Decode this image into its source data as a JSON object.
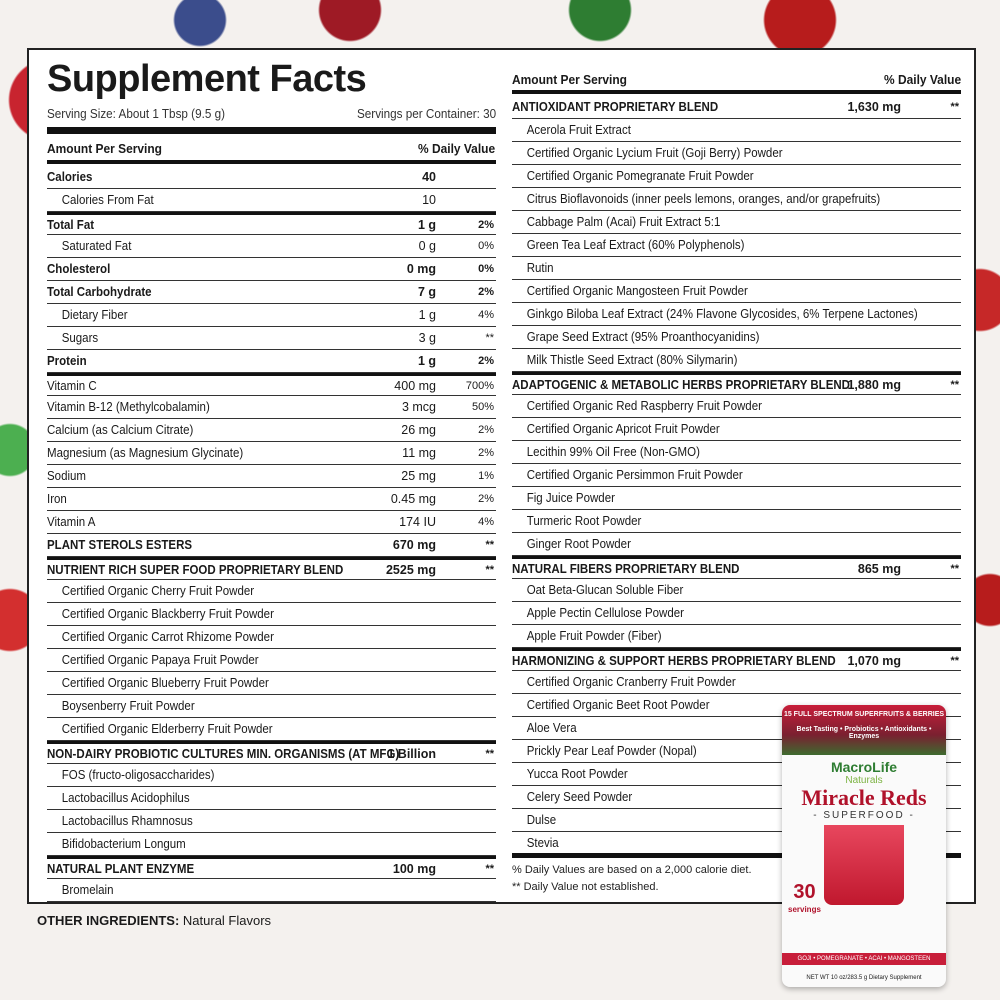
{
  "title": "Supplement Facts",
  "serving_size": "Serving Size:  About 1 Tbsp (9.5 g)",
  "servings_per_container": "Servings per Container: 30",
  "amount_header": "Amount Per Serving",
  "dv_header": "% Daily Value",
  "left_rows": [
    {
      "name": "Calories",
      "amount": "40",
      "dv": "",
      "bold": true,
      "thick": false
    },
    {
      "name": "Calories From Fat",
      "amount": "10",
      "dv": "",
      "indent": true
    },
    {
      "name": "Total Fat",
      "amount": "1 g",
      "dv": "2%",
      "bold": true,
      "thick": true
    },
    {
      "name": "Saturated Fat",
      "amount": "0 g",
      "dv": "0%",
      "indent": true
    },
    {
      "name": "Cholesterol",
      "amount": "0 mg",
      "dv": "0%",
      "bold": true
    },
    {
      "name": "Total Carbohydrate",
      "amount": "7 g",
      "dv": "2%",
      "bold": true
    },
    {
      "name": "Dietary Fiber",
      "amount": "1 g",
      "dv": "4%",
      "indent": true
    },
    {
      "name": "Sugars",
      "amount": "3 g",
      "dv": "**",
      "indent": true
    },
    {
      "name": "Protein",
      "amount": "1 g",
      "dv": "2%",
      "bold": true
    },
    {
      "name": "Vitamin C",
      "amount": "400 mg",
      "dv": "700%",
      "thick": true
    },
    {
      "name": "Vitamin B-12 (Methylcobalamin)",
      "amount": "3 mcg",
      "dv": "50%"
    },
    {
      "name": "Calcium (as Calcium Citrate)",
      "amount": "26 mg",
      "dv": "2%"
    },
    {
      "name": "Magnesium (as Magnesium Glycinate)",
      "amount": "11 mg",
      "dv": "2%"
    },
    {
      "name": "Sodium",
      "amount": "25 mg",
      "dv": "1%"
    },
    {
      "name": "Iron",
      "amount": "0.45 mg",
      "dv": "2%"
    },
    {
      "name": "Vitamin A",
      "amount": "174 IU",
      "dv": "4%"
    },
    {
      "name": "PLANT STEROLS ESTERS",
      "amount": "670 mg",
      "dv": "**",
      "bold": true
    },
    {
      "name": "NUTRIENT RICH SUPER FOOD PROPRIETARY BLEND",
      "amount": "2525 mg",
      "dv": "**",
      "bold": true,
      "thick": true
    },
    {
      "name": "Certified Organic Cherry Fruit Powder",
      "indent": true
    },
    {
      "name": "Certified Organic Blackberry Fruit Powder",
      "indent": true
    },
    {
      "name": "Certified Organic Carrot Rhizome Powder",
      "indent": true
    },
    {
      "name": "Certified Organic Papaya Fruit Powder",
      "indent": true
    },
    {
      "name": "Certified Organic Blueberry Fruit Powder",
      "indent": true
    },
    {
      "name": "Boysenberry Fruit Powder",
      "indent": true
    },
    {
      "name": "Certified Organic Elderberry Fruit Powder",
      "indent": true
    },
    {
      "name": "NON-DAIRY PROBIOTIC CULTURES MIN. ORGANISMS (AT MFG)",
      "amount": "1 Billion",
      "dv": "**",
      "bold": true,
      "thick": true
    },
    {
      "name": "FOS (fructo-oligosaccharides)",
      "indent": true
    },
    {
      "name": "Lactobacillus Acidophilus",
      "indent": true
    },
    {
      "name": "Lactobacillus Rhamnosus",
      "indent": true
    },
    {
      "name": "Bifidobacterium Longum",
      "indent": true
    },
    {
      "name": "NATURAL PLANT ENZYME",
      "amount": "100 mg",
      "dv": "**",
      "bold": true,
      "thick": true
    },
    {
      "name": "Bromelain",
      "indent": true
    }
  ],
  "right_rows": [
    {
      "name": "ANTIOXIDANT PROPRIETARY BLEND",
      "amount": "1,630 mg",
      "dv": "**",
      "bold": true
    },
    {
      "name": "Acerola Fruit Extract",
      "indent": true
    },
    {
      "name": "Certified Organic Lycium Fruit (Goji Berry) Powder",
      "indent": true
    },
    {
      "name": "Certified Organic Pomegranate Fruit Powder",
      "indent": true
    },
    {
      "name": "Citrus Bioflavonoids (inner peels lemons, oranges, and/or grapefruits)",
      "indent": true
    },
    {
      "name": "Cabbage Palm (Acai) Fruit Extract 5:1",
      "indent": true
    },
    {
      "name": "Green Tea Leaf Extract (60% Polyphenols)",
      "indent": true
    },
    {
      "name": "Rutin",
      "indent": true
    },
    {
      "name": "Certified Organic Mangosteen Fruit Powder",
      "indent": true
    },
    {
      "name": "Ginkgo Biloba Leaf Extract (24% Flavone Glycosides, 6% Terpene Lactones)",
      "indent": true
    },
    {
      "name": "Grape Seed Extract (95% Proanthocyanidins)",
      "indent": true
    },
    {
      "name": "Milk Thistle Seed Extract (80% Silymarin)",
      "indent": true
    },
    {
      "name": "ADAPTOGENIC & METABOLIC HERBS PROPRIETARY BLEND",
      "amount": "1,880 mg",
      "dv": "**",
      "bold": true,
      "thick": true
    },
    {
      "name": "Certified Organic Red Raspberry Fruit Powder",
      "indent": true
    },
    {
      "name": "Certified Organic Apricot Fruit Powder",
      "indent": true
    },
    {
      "name": "Lecithin 99% Oil Free (Non-GMO)",
      "indent": true
    },
    {
      "name": "Certified Organic Persimmon Fruit Powder",
      "indent": true
    },
    {
      "name": "Fig Juice Powder",
      "indent": true
    },
    {
      "name": "Turmeric Root Powder",
      "indent": true
    },
    {
      "name": "Ginger Root Powder",
      "indent": true
    },
    {
      "name": "NATURAL FIBERS PROPRIETARY BLEND",
      "amount": "865 mg",
      "dv": "**",
      "bold": true,
      "thick": true
    },
    {
      "name": "Oat Beta-Glucan Soluble Fiber",
      "indent": true
    },
    {
      "name": "Apple Pectin Cellulose Powder",
      "indent": true
    },
    {
      "name": "Apple Fruit Powder (Fiber)",
      "indent": true
    },
    {
      "name": "HARMONIZING & SUPPORT HERBS PROPRIETARY BLEND",
      "amount": "1,070 mg",
      "dv": "**",
      "bold": true,
      "thick": true
    },
    {
      "name": "Certified Organic Cranberry Fruit Powder",
      "indent": true
    },
    {
      "name": "Certified Organic Beet Root Powder",
      "indent": true
    },
    {
      "name": "Aloe Vera",
      "indent": true
    },
    {
      "name": "Prickly Pear Leaf Powder (Nopal)",
      "indent": true
    },
    {
      "name": "Yucca Root Powder",
      "indent": true
    },
    {
      "name": "Celery Seed Powder",
      "indent": true
    },
    {
      "name": "Dulse",
      "indent": true
    },
    {
      "name": "Stevia",
      "indent": true
    }
  ],
  "footnote_1": "% Daily Values are based on a 2,000 calorie diet.",
  "footnote_2": "** Daily Value not established.",
  "other_ingredients": {
    "label": "OTHER INGREDIENTS:",
    "value": " Natural Flavors"
  },
  "product": {
    "top_line": "15 FULL SPECTRUM SUPERFRUITS & BERRIES",
    "tagline": "Best Tasting • Probiotics • Antioxidants • Enzymes",
    "brand": "MacroLife",
    "brand_sub": "Naturals",
    "name": "Miracle Reds",
    "subtitle": "- SUPERFOOD -",
    "servings": "30",
    "servings_label": "servings",
    "band": "GOJI • POMEGRANATE • ACAI • MANGOSTEEN",
    "net_wt": "NET WT 10 oz/283.5 g    Dietary Supplement"
  }
}
